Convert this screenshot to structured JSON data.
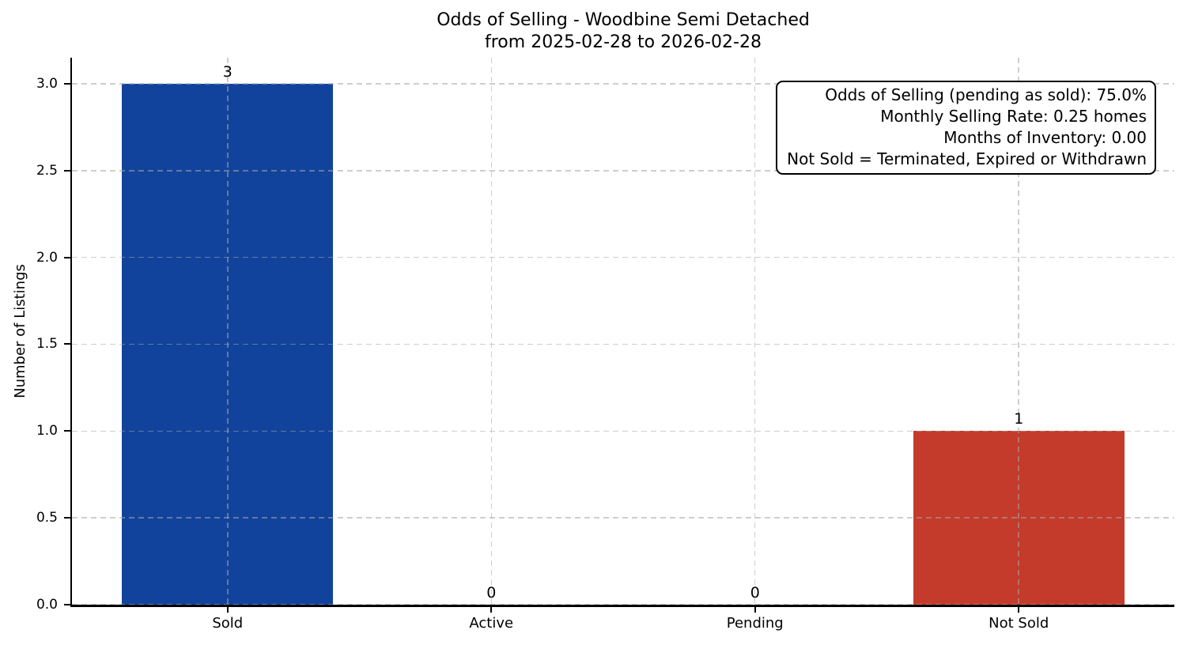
{
  "chart_data": {
    "type": "bar",
    "title_lines": [
      "Odds of Selling - Woodbine Semi Detached",
      "from 2025-02-28 to 2026-02-28"
    ],
    "categories": [
      "Sold",
      "Active",
      "Pending",
      "Not Sold"
    ],
    "values": [
      3,
      0,
      0,
      1
    ],
    "value_labels": [
      "3",
      "0",
      "0",
      "1"
    ],
    "bar_colors": [
      "#12439c",
      null,
      null,
      "#c43b2c"
    ],
    "xlabel": "",
    "ylabel": "Number of Listings",
    "ylim": [
      0,
      3.15
    ],
    "yticks": [
      0,
      0.5,
      1,
      1.5,
      2,
      2.5,
      3
    ],
    "ytick_labels": [
      "0.0",
      "0.5",
      "1.0",
      "1.5",
      "2.0",
      "2.5",
      "3.0"
    ],
    "grid": "dashed, horizontal and vertical, drawn over bars",
    "legend": "none",
    "annotation_lines": [
      "Odds of Selling (pending as sold): 75.0%",
      "Monthly Selling Rate: 0.25 homes",
      "Months of Inventory: 0.00",
      "Not Sold = Terminated, Expired or Withdrawn"
    ]
  }
}
